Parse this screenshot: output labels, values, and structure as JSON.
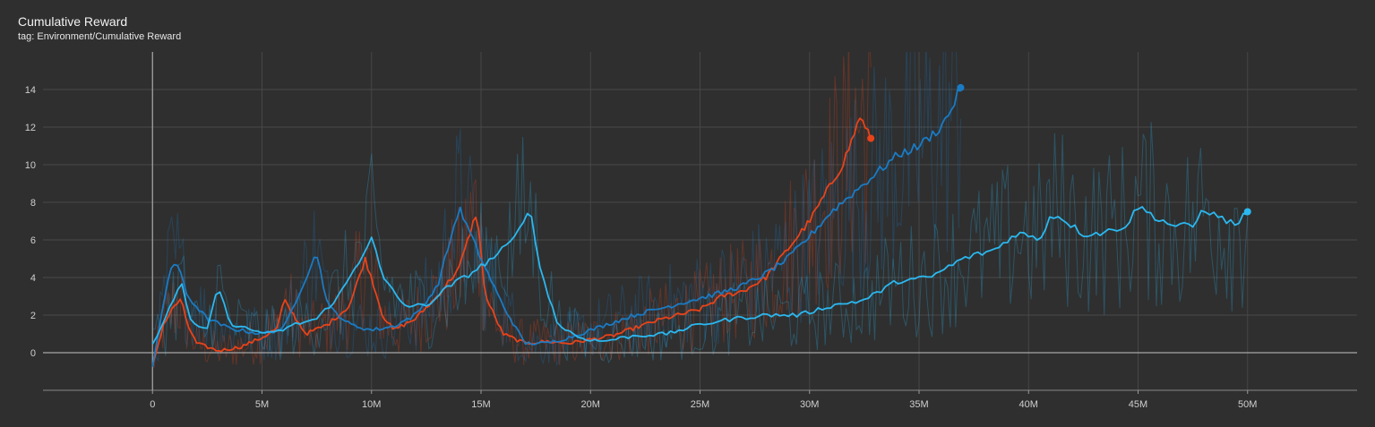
{
  "card": {
    "title": "Cumulative Reward",
    "tag": "tag: Environment/Cumulative Reward"
  },
  "chart_data": {
    "type": "line",
    "title": "Cumulative Reward",
    "xlabel": "",
    "ylabel": "",
    "x_ticks": [
      "0",
      "5M",
      "10M",
      "15M",
      "20M",
      "25M",
      "30M",
      "35M",
      "40M",
      "45M",
      "50M"
    ],
    "y_ticks": [
      "0",
      "2",
      "4",
      "6",
      "8",
      "10",
      "12",
      "14"
    ],
    "xlim": [
      -5000000,
      55000000
    ],
    "ylim": [
      -2,
      16
    ],
    "grid": true,
    "series": [
      {
        "color": "#e8431a",
        "x": [
          0,
          500000,
          1000000,
          1300000,
          1600000,
          2000000,
          3000000,
          4000000,
          5000000,
          5700000,
          6000000,
          7000000,
          8000000,
          9000000,
          9700000,
          10000000,
          10500000,
          11000000,
          12000000,
          13000000,
          14000000,
          14800000,
          15200000,
          16000000,
          17000000,
          18000000,
          19000000,
          20000000,
          21000000,
          22000000,
          23000000,
          24000000,
          25000000,
          26000000,
          27000000,
          28000000,
          29000000,
          30000000,
          31000000,
          31500000,
          32000000,
          32300000,
          32500000,
          32800000
        ],
        "y": [
          -0.7,
          1.5,
          2.5,
          2.8,
          1.5,
          0.5,
          0.1,
          0.3,
          0.8,
          1.3,
          2.8,
          1.0,
          1.5,
          2.5,
          5.0,
          4.0,
          2.0,
          1.2,
          1.8,
          3.0,
          4.5,
          7.5,
          3.0,
          1.0,
          0.5,
          0.6,
          0.5,
          0.7,
          0.9,
          1.3,
          1.7,
          2.0,
          2.3,
          3.0,
          3.3,
          4.0,
          5.5,
          7.0,
          9.0,
          10.0,
          11.5,
          12.6,
          12.0,
          11.4
        ]
      },
      {
        "color": "#1a7bc4",
        "x": [
          0,
          500000,
          800000,
          1100000,
          1600000,
          2500000,
          3500000,
          5000000,
          6000000,
          7000000,
          7500000,
          8000000,
          9000000,
          10000000,
          11000000,
          12000000,
          13000000,
          14000000,
          15000000,
          16000000,
          17000000,
          18000000,
          19000000,
          20000000,
          21000000,
          22000000,
          23000000,
          24000000,
          25000000,
          26000000,
          27000000,
          28000000,
          29000000,
          30000000,
          31000000,
          32000000,
          33000000,
          34000000,
          35000000,
          36000000,
          36500000,
          36900000
        ],
        "y": [
          -0.7,
          2.5,
          4.5,
          4.8,
          3.0,
          1.8,
          1.3,
          1.0,
          1.3,
          4.0,
          5.3,
          2.5,
          1.5,
          1.2,
          1.4,
          2.0,
          3.5,
          7.7,
          5.0,
          2.5,
          0.5,
          0.5,
          0.8,
          1.2,
          1.6,
          2.0,
          2.3,
          2.6,
          2.9,
          3.2,
          3.6,
          4.2,
          5.0,
          6.2,
          7.5,
          8.5,
          9.5,
          10.5,
          11.0,
          12.0,
          13.0,
          14.1
        ]
      },
      {
        "color": "#2bb8f0",
        "x": [
          0,
          500000,
          1000000,
          1300000,
          1800000,
          2500000,
          3000000,
          3500000,
          4500000,
          5500000,
          6500000,
          7500000,
          8500000,
          9500000,
          10000000,
          10500000,
          11500000,
          12500000,
          13500000,
          14500000,
          15500000,
          16500000,
          17200000,
          17700000,
          18500000,
          19500000,
          20500000,
          22000000,
          23500000,
          25000000,
          26500000,
          28000000,
          29500000,
          31000000,
          32500000,
          34000000,
          35500000,
          37000000,
          38500000,
          39500000,
          40500000,
          41000000,
          41500000,
          42500000,
          43500000,
          44500000,
          45000000,
          45500000,
          46500000,
          47500000,
          48000000,
          48500000,
          49500000,
          50000000
        ],
        "y": [
          0.5,
          1.5,
          3.0,
          3.8,
          1.5,
          1.2,
          3.6,
          1.6,
          1.2,
          1.0,
          1.5,
          1.8,
          3.0,
          5.0,
          6.2,
          4.0,
          2.5,
          2.5,
          3.5,
          4.2,
          5.0,
          6.0,
          7.8,
          4.5,
          1.5,
          0.8,
          0.6,
          0.9,
          1.0,
          1.5,
          1.8,
          2.0,
          2.0,
          2.5,
          2.8,
          3.8,
          4.0,
          5.0,
          5.5,
          6.4,
          6.0,
          7.3,
          7.2,
          6.3,
          6.4,
          6.8,
          7.8,
          7.4,
          6.8,
          6.7,
          7.7,
          7.3,
          6.8,
          7.5
        ]
      }
    ]
  }
}
